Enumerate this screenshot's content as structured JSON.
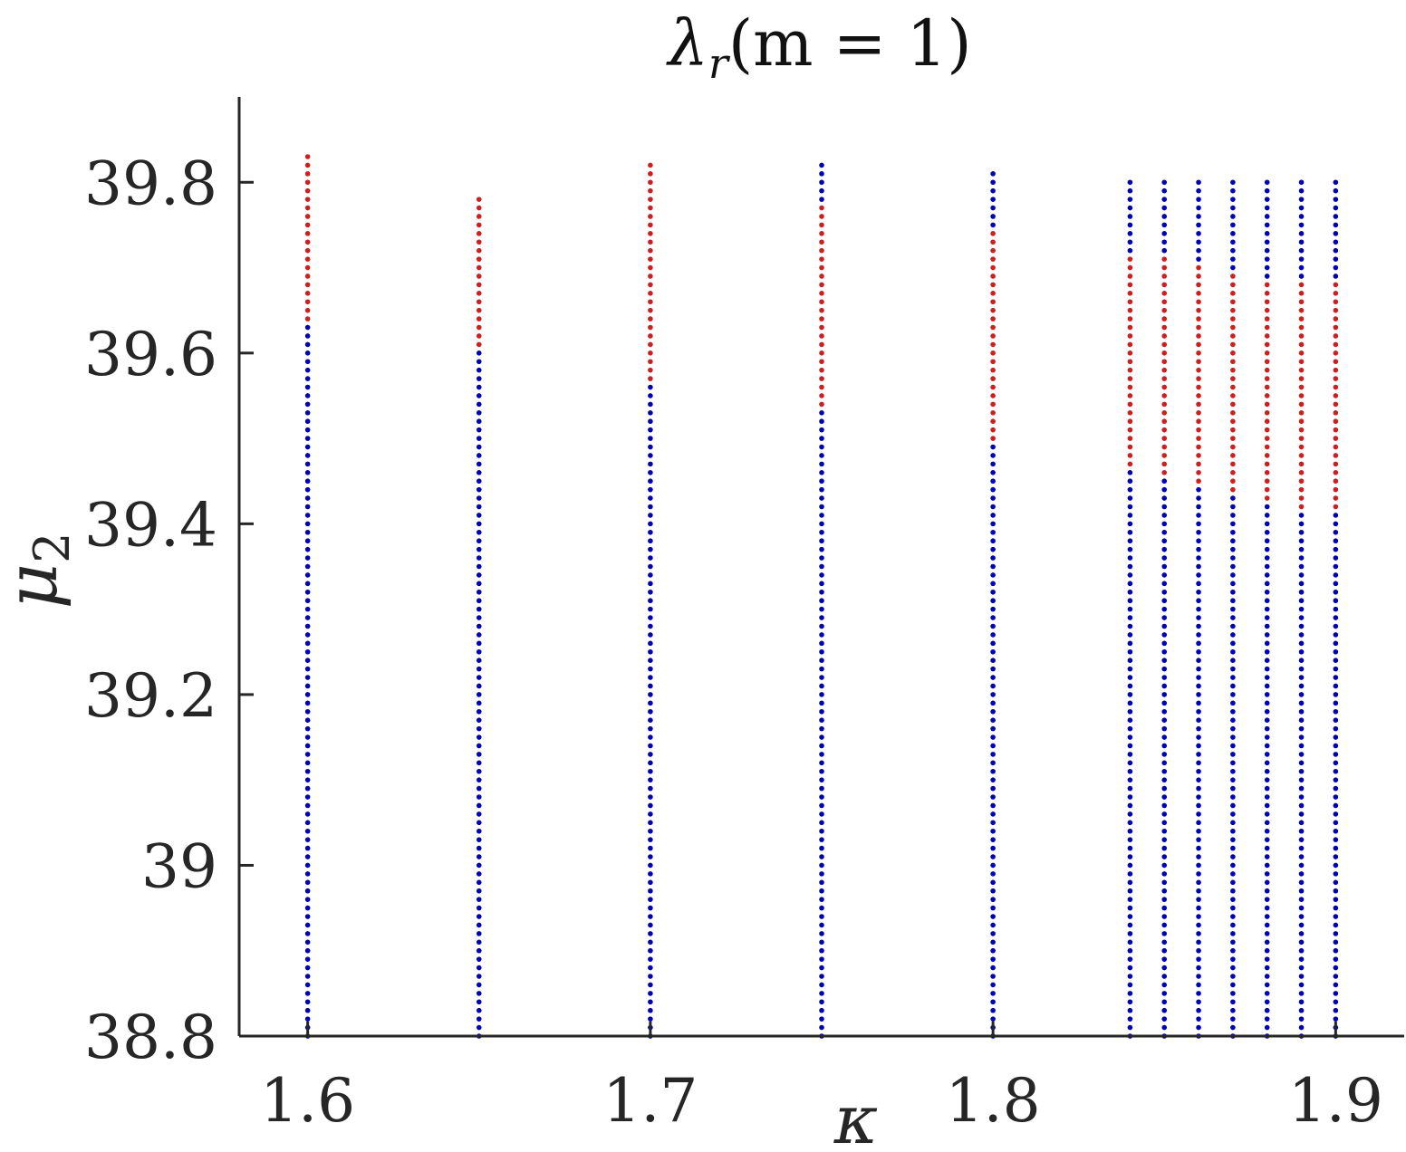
{
  "chart_data": {
    "type": "scatter",
    "title": "λ",
    "title_sub": "r",
    "title_rest": "(m = 1)",
    "xlabel": "κ",
    "ylabel": "μ",
    "ylabel_sub": "2",
    "xlim": [
      1.58,
      1.92
    ],
    "ylim": [
      38.8,
      39.9
    ],
    "xticks": [
      1.6,
      1.7,
      1.8,
      1.9
    ],
    "xtick_labels": [
      "1.6",
      "1.7",
      "1.8",
      "1.9"
    ],
    "yticks": [
      38.8,
      39,
      39.2,
      39.4,
      39.6,
      39.8
    ],
    "ytick_labels": [
      "38.8",
      "39",
      "39.2",
      "39.4",
      "39.6",
      "39.8"
    ],
    "point_spacing": 0.01,
    "colors": {
      "stable": "#0000b3",
      "unstable": "#cc1f1f",
      "axis": "#262626"
    },
    "series": [
      {
        "name": "",
        "color": "#0000b3",
        "class": "stable"
      },
      {
        "name": "",
        "color": "#cc1f1f",
        "class": "unstable"
      }
    ],
    "columns": [
      {
        "x": 1.6,
        "y_min": 38.8,
        "y_max": 39.83,
        "red_from": 39.64
      },
      {
        "x": 1.65,
        "y_min": 38.8,
        "y_max": 39.78,
        "red_from": 39.61
      },
      {
        "x": 1.7,
        "y_min": 38.8,
        "y_max": 39.82,
        "red_from": 39.57
      },
      {
        "x": 1.75,
        "y_min": 38.8,
        "y_max": 39.82,
        "red_from": 39.54,
        "red_to": 39.77
      },
      {
        "x": 1.8,
        "y_min": 38.8,
        "y_max": 39.81,
        "red_from": 39.5,
        "red_to": 39.74
      },
      {
        "x": 1.84,
        "y_min": 38.8,
        "y_max": 39.8,
        "red_from": 39.47,
        "red_to": 39.71
      },
      {
        "x": 1.85,
        "y_min": 38.8,
        "y_max": 39.8,
        "red_from": 39.46,
        "red_to": 39.71
      },
      {
        "x": 1.86,
        "y_min": 38.8,
        "y_max": 39.8,
        "red_from": 39.45,
        "red_to": 39.7
      },
      {
        "x": 1.87,
        "y_min": 38.8,
        "y_max": 39.8,
        "red_from": 39.44,
        "red_to": 39.69
      },
      {
        "x": 1.88,
        "y_min": 38.8,
        "y_max": 39.8,
        "red_from": 39.43,
        "red_to": 39.68
      },
      {
        "x": 1.89,
        "y_min": 38.8,
        "y_max": 39.8,
        "red_from": 39.42,
        "red_to": 39.68
      },
      {
        "x": 1.9,
        "y_min": 38.8,
        "y_max": 39.8,
        "red_from": 39.42,
        "red_to": 39.68
      }
    ]
  }
}
